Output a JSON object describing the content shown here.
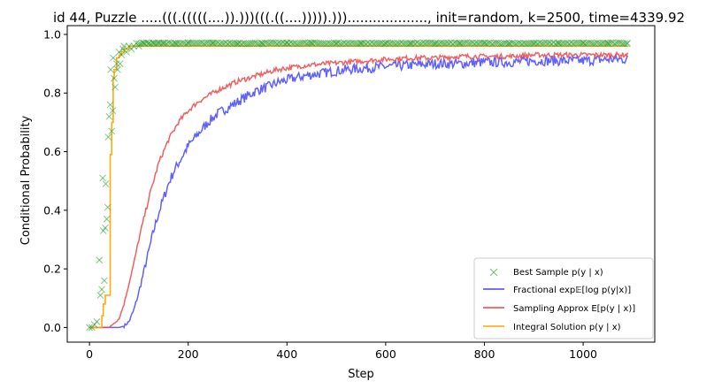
{
  "chart_data": {
    "type": "line",
    "title": "id 44, Puzzle .....(((.(((((....)).)))(((.((....))))).)))..................., init=random, k=2500, time=4339.92",
    "xlabel": "Step",
    "ylabel": "Conditional Probability",
    "xlim": [
      -45,
      1145
    ],
    "ylim": [
      -0.05,
      1.03
    ],
    "x_ticks": [
      0,
      200,
      400,
      600,
      800,
      1000
    ],
    "y_ticks": [
      0.0,
      0.2,
      0.4,
      0.6,
      0.8,
      1.0
    ],
    "x_tick_labels": [
      "0",
      "200",
      "400",
      "600",
      "800",
      "1000"
    ],
    "y_tick_labels": [
      "0.0",
      "0.2",
      "0.4",
      "0.6",
      "0.8",
      "1.0"
    ],
    "grid": false,
    "legend_position": "lower-right",
    "series": [
      {
        "name": "Best Sample p(y | x)",
        "style": "x-markers",
        "color": "#2ca02c",
        "x": [
          0,
          5,
          10,
          15,
          20,
          22,
          25,
          27,
          28,
          30,
          32,
          33,
          35,
          37,
          38,
          40,
          42,
          43,
          45,
          47,
          48,
          50,
          52,
          55,
          57,
          60,
          62,
          65,
          68,
          70,
          75,
          80,
          85,
          90,
          95,
          100,
          110,
          120,
          130,
          140,
          150,
          175,
          200,
          250,
          300,
          350,
          400,
          450,
          500,
          550,
          600,
          650,
          700,
          750,
          800,
          850,
          900,
          950,
          1000,
          1050,
          1090
        ],
        "values": [
          0.0,
          0.0,
          0.01,
          0.02,
          0.23,
          0.11,
          0.13,
          0.51,
          0.33,
          0.16,
          0.34,
          0.49,
          0.37,
          0.41,
          0.65,
          0.72,
          0.76,
          0.88,
          0.67,
          0.74,
          0.92,
          0.85,
          0.82,
          0.9,
          0.88,
          0.94,
          0.9,
          0.93,
          0.95,
          0.96,
          0.94,
          0.96,
          0.95,
          0.96,
          0.97,
          0.96,
          0.97,
          0.97,
          0.97,
          0.97,
          0.97,
          0.97,
          0.97,
          0.97,
          0.97,
          0.97,
          0.97,
          0.97,
          0.97,
          0.97,
          0.97,
          0.97,
          0.97,
          0.97,
          0.97,
          0.97,
          0.97,
          0.97,
          0.97,
          0.97,
          0.97
        ]
      },
      {
        "name": "Fractional exp𝔼[log p(y|x)]",
        "style": "line",
        "color": "#4444ff",
        "x": [
          0,
          20,
          40,
          60,
          70,
          80,
          90,
          100,
          110,
          120,
          130,
          140,
          150,
          160,
          170,
          180,
          190,
          200,
          220,
          240,
          260,
          280,
          300,
          320,
          340,
          360,
          380,
          400,
          440,
          480,
          520,
          560,
          600,
          650,
          700,
          750,
          800,
          850,
          900,
          950,
          1000,
          1050,
          1090
        ],
        "values": [
          0.0,
          0.0,
          0.0,
          0.0,
          0.005,
          0.02,
          0.06,
          0.12,
          0.19,
          0.26,
          0.33,
          0.39,
          0.44,
          0.49,
          0.53,
          0.56,
          0.59,
          0.62,
          0.66,
          0.7,
          0.73,
          0.75,
          0.77,
          0.79,
          0.81,
          0.82,
          0.835,
          0.845,
          0.86,
          0.87,
          0.88,
          0.885,
          0.89,
          0.895,
          0.9,
          0.9,
          0.905,
          0.905,
          0.91,
          0.91,
          0.91,
          0.915,
          0.915
        ],
        "noise": 0.012
      },
      {
        "name": "Sampling Approx E[p(y | x)]",
        "style": "line",
        "color": "#ee4444",
        "x": [
          0,
          20,
          40,
          60,
          70,
          80,
          90,
          100,
          110,
          120,
          130,
          140,
          150,
          160,
          170,
          180,
          190,
          200,
          220,
          240,
          260,
          280,
          300,
          320,
          340,
          360,
          380,
          400,
          440,
          480,
          520,
          560,
          600,
          650,
          700,
          750,
          800,
          850,
          900,
          950,
          1000,
          1050,
          1090
        ],
        "values": [
          0.0,
          0.0,
          0.0,
          0.03,
          0.08,
          0.15,
          0.22,
          0.3,
          0.37,
          0.44,
          0.5,
          0.56,
          0.6,
          0.64,
          0.67,
          0.7,
          0.72,
          0.74,
          0.77,
          0.79,
          0.81,
          0.825,
          0.84,
          0.85,
          0.86,
          0.87,
          0.88,
          0.885,
          0.895,
          0.9,
          0.905,
          0.91,
          0.915,
          0.92,
          0.92,
          0.925,
          0.925,
          0.925,
          0.93,
          0.93,
          0.93,
          0.93,
          0.93
        ],
        "noise": 0.006
      },
      {
        "name": "Integral Solution p(y | x)",
        "style": "step",
        "color": "#ffa500",
        "x": [
          0,
          18,
          25,
          28,
          32,
          35,
          40,
          42,
          45,
          48,
          50,
          55,
          60,
          65,
          70,
          80,
          100,
          150,
          300,
          600,
          900,
          1090
        ],
        "values": [
          0.0,
          0.0,
          0.04,
          0.08,
          0.11,
          0.11,
          0.11,
          0.59,
          0.7,
          0.85,
          0.88,
          0.92,
          0.93,
          0.94,
          0.95,
          0.96,
          0.96,
          0.96,
          0.96,
          0.96,
          0.96,
          0.96
        ]
      }
    ]
  },
  "legend": {
    "items": [
      {
        "label": "Best Sample p(y | x)",
        "kind": "marker",
        "color": "#2ca02c"
      },
      {
        "label": "Fractional exp𝔼[log p(y|x)]",
        "kind": "line",
        "color": "#4444ff"
      },
      {
        "label": "Sampling Approx E[p(y | x)]",
        "kind": "line",
        "color": "#ee4444"
      },
      {
        "label": "Integral Solution p(y | x)",
        "kind": "line",
        "color": "#ffa500"
      }
    ]
  }
}
